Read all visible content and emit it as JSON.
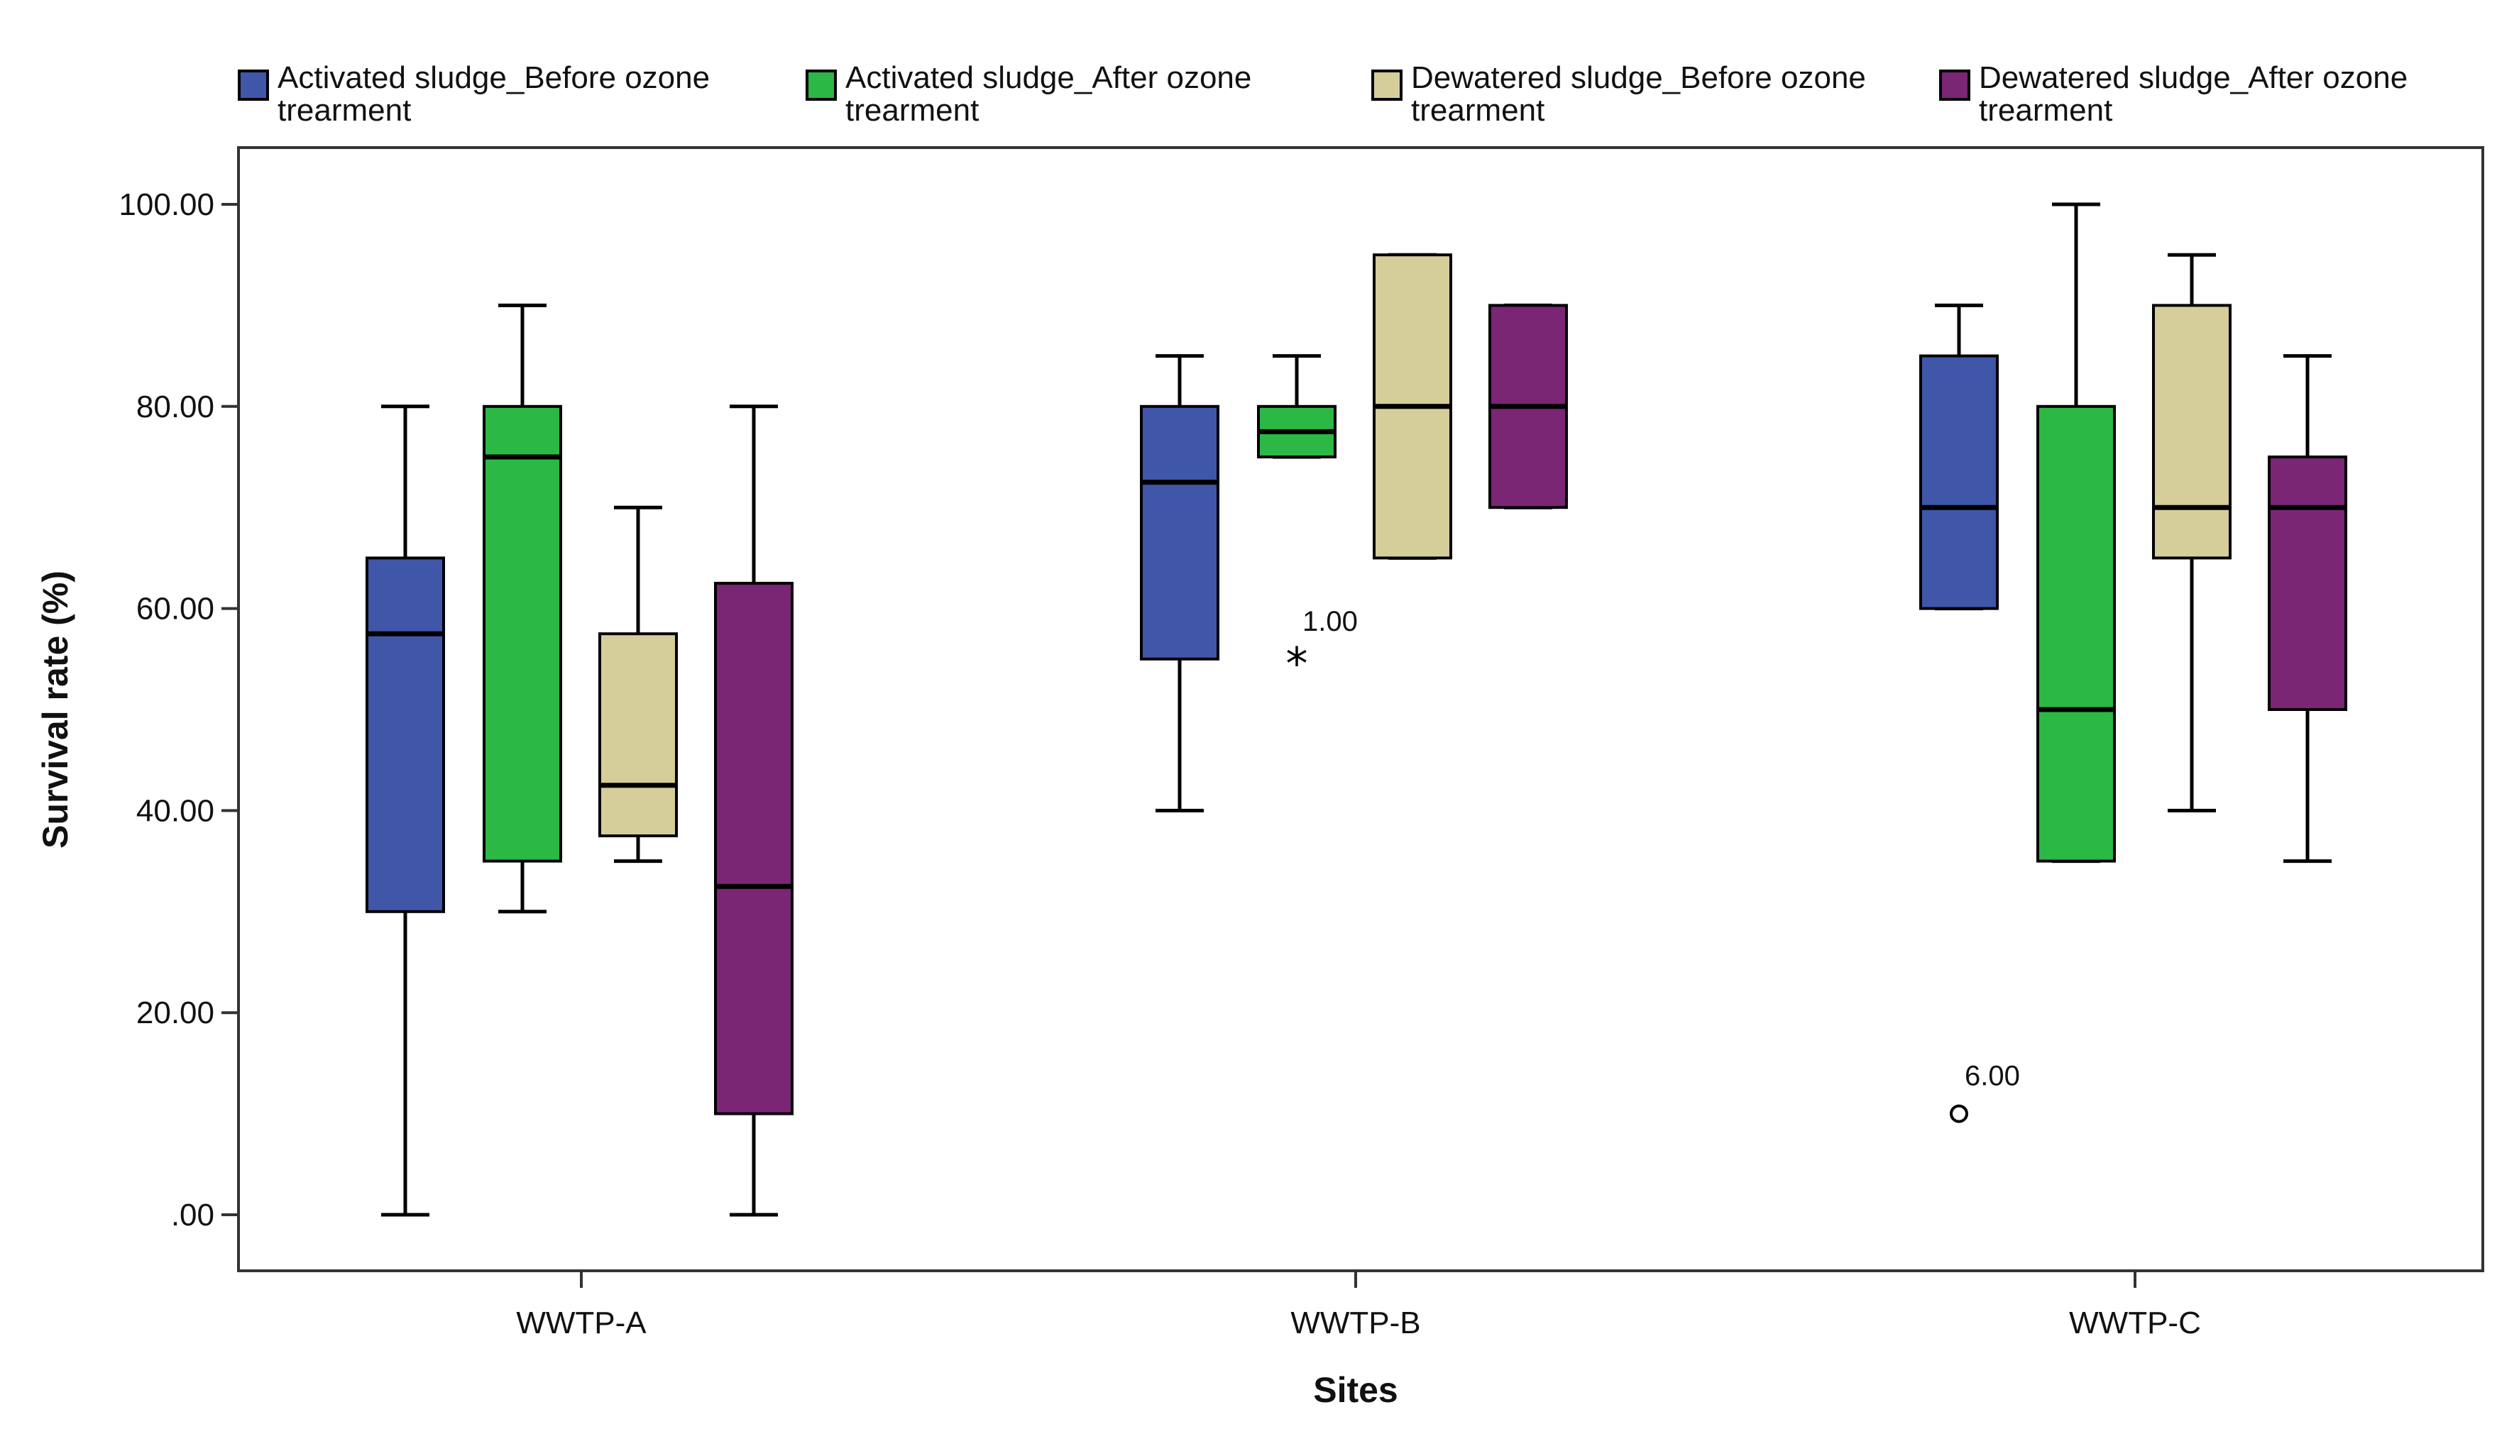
{
  "chart_data": {
    "type": "boxplot",
    "title": "",
    "xlabel": "Sites",
    "ylabel": "Survival rate  (%)",
    "ylim": [
      -5,
      105
    ],
    "yticks": [
      0,
      20,
      40,
      60,
      80,
      100
    ],
    "ytick_labels": [
      ".00",
      "20.00",
      "40.00",
      "60.00",
      "80.00",
      "100.00"
    ],
    "categories": [
      "WWTP-A",
      "WWTP-B",
      "WWTP-C"
    ],
    "legend_position": "top",
    "series": [
      {
        "name": "Activated sludge_Before ozone\ntrearment",
        "color": "#3F56A9",
        "boxes": [
          {
            "min": 0,
            "q1": 30,
            "median": 57.5,
            "q3": 65,
            "max": 80
          },
          {
            "min": 40,
            "q1": 55,
            "median": 72.5,
            "q3": 80,
            "max": 85
          },
          {
            "min": 60,
            "q1": 60,
            "median": 70,
            "q3": 85,
            "max": 90
          }
        ]
      },
      {
        "name": "Activated sludge_After ozone\ntrearment",
        "color": "#2CB844",
        "boxes": [
          {
            "min": 30,
            "q1": 35,
            "median": 75,
            "q3": 80,
            "max": 90
          },
          {
            "min": 75,
            "q1": 75,
            "median": 77.5,
            "q3": 80,
            "max": 85
          },
          {
            "min": 35,
            "q1": 35,
            "median": 50,
            "q3": 80,
            "max": 100
          }
        ]
      },
      {
        "name": "Dewatered sludge_Before ozone\ntrearment",
        "color": "#D5CE9A",
        "boxes": [
          {
            "min": 35,
            "q1": 37.5,
            "median": 42.5,
            "q3": 57.5,
            "max": 70
          },
          {
            "min": 65,
            "q1": 65,
            "median": 80,
            "q3": 95,
            "max": 95
          },
          {
            "min": 40,
            "q1": 65,
            "median": 70,
            "q3": 90,
            "max": 95
          }
        ]
      },
      {
        "name": "Dewatered sludge_After ozone\ntrearment",
        "color": "#7B2575",
        "boxes": [
          {
            "min": 0,
            "q1": 10,
            "median": 32.5,
            "q3": 62.5,
            "max": 80
          },
          {
            "min": 70,
            "q1": 70,
            "median": 80,
            "q3": 90,
            "max": 90
          },
          {
            "min": 35,
            "q1": 50,
            "median": 70,
            "q3": 75,
            "max": 85
          }
        ]
      }
    ],
    "outliers": [
      {
        "category": "WWTP-B",
        "series_index": 1,
        "value": 55,
        "marker": "star",
        "label": "1.00"
      },
      {
        "category": "WWTP-C",
        "series_index": 0,
        "value": 10,
        "marker": "circle",
        "label": "6.00"
      }
    ]
  }
}
